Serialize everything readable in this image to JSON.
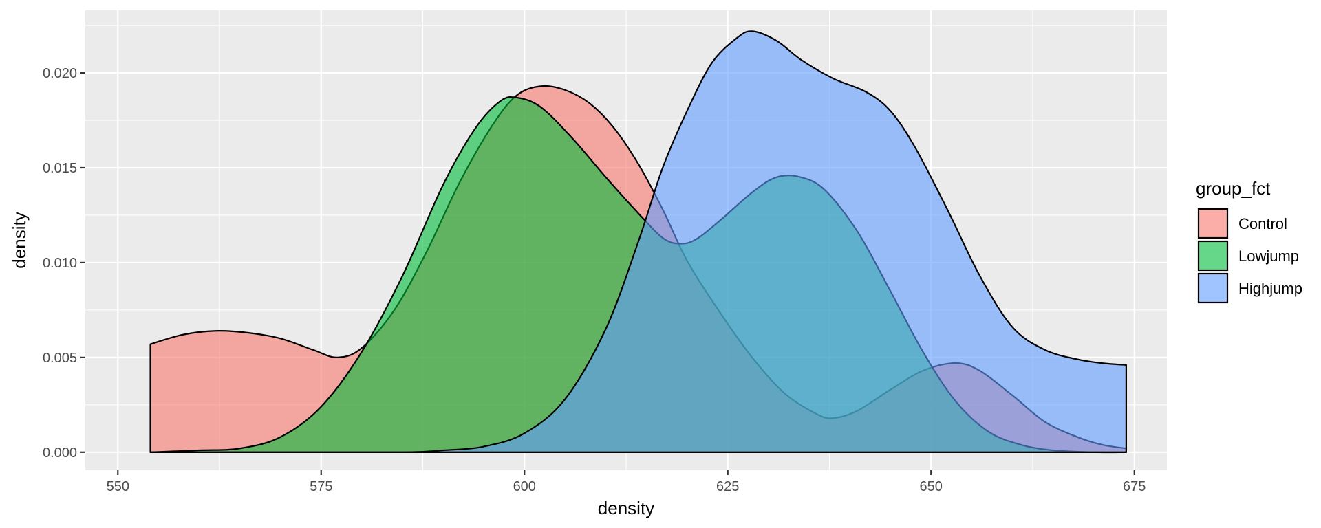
{
  "chart_data": {
    "type": "area",
    "subtype": "density",
    "xlabel": "density",
    "ylabel": "density",
    "xlim": [
      546,
      679
    ],
    "ylim": [
      -0.00095,
      0.0233
    ],
    "x_ticks": [
      550,
      575,
      600,
      625,
      650,
      675
    ],
    "y_ticks": [
      0.0,
      0.005,
      0.01,
      0.015,
      0.02
    ],
    "x_tick_labels": [
      "550",
      "575",
      "600",
      "625",
      "650",
      "675"
    ],
    "y_tick_labels": [
      "0.000",
      "0.005",
      "0.010",
      "0.015",
      "0.020"
    ],
    "grid": true,
    "legend": {
      "title": "group_fct",
      "position": "right",
      "entries": [
        "Control",
        "Lowjump",
        "Highjump"
      ]
    },
    "series": [
      {
        "name": "Control",
        "color": "#F8766D",
        "points": [
          [
            554,
            0.0057
          ],
          [
            558,
            0.0062
          ],
          [
            562,
            0.0064
          ],
          [
            566,
            0.0063
          ],
          [
            570,
            0.006
          ],
          [
            574,
            0.0054
          ],
          [
            577,
            0.005
          ],
          [
            580,
            0.0055
          ],
          [
            584,
            0.0075
          ],
          [
            588,
            0.0106
          ],
          [
            592,
            0.0142
          ],
          [
            596,
            0.0172
          ],
          [
            599,
            0.0188
          ],
          [
            602,
            0.0193
          ],
          [
            605,
            0.0191
          ],
          [
            608,
            0.0184
          ],
          [
            611,
            0.0171
          ],
          [
            614,
            0.0152
          ],
          [
            617,
            0.0128
          ],
          [
            620,
            0.0101
          ],
          [
            624,
            0.0074
          ],
          [
            628,
            0.005
          ],
          [
            632,
            0.0031
          ],
          [
            636,
            0.002
          ],
          [
            638,
            0.0018
          ],
          [
            641,
            0.0022
          ],
          [
            645,
            0.0033
          ],
          [
            649,
            0.0043
          ],
          [
            653,
            0.0047
          ],
          [
            656,
            0.0043
          ],
          [
            660,
            0.003
          ],
          [
            664,
            0.0016
          ],
          [
            668,
            0.0008
          ],
          [
            671,
            0.0004
          ],
          [
            674,
            0.0002
          ]
        ]
      },
      {
        "name": "Lowjump",
        "color": "#00BA38",
        "points": [
          [
            554,
            0.0
          ],
          [
            560,
            0.0001
          ],
          [
            565,
            0.0002
          ],
          [
            570,
            0.0008
          ],
          [
            575,
            0.0024
          ],
          [
            580,
            0.0053
          ],
          [
            585,
            0.0093
          ],
          [
            590,
            0.0141
          ],
          [
            594,
            0.0171
          ],
          [
            597,
            0.0185
          ],
          [
            599,
            0.0187
          ],
          [
            602,
            0.0182
          ],
          [
            606,
            0.0165
          ],
          [
            610,
            0.0145
          ],
          [
            614,
            0.0126
          ],
          [
            617,
            0.0113
          ],
          [
            619,
            0.011
          ],
          [
            621,
            0.0112
          ],
          [
            624,
            0.0122
          ],
          [
            628,
            0.0137
          ],
          [
            631,
            0.0145
          ],
          [
            634,
            0.0145
          ],
          [
            637,
            0.0138
          ],
          [
            641,
            0.0116
          ],
          [
            645,
            0.0085
          ],
          [
            649,
            0.0053
          ],
          [
            653,
            0.0027
          ],
          [
            657,
            0.0011
          ],
          [
            661,
            0.0004
          ],
          [
            665,
            0.0001
          ],
          [
            670,
            0.0
          ],
          [
            674,
            0.0
          ]
        ]
      },
      {
        "name": "Highjump",
        "color": "#619CFF",
        "points": [
          [
            554,
            0.0
          ],
          [
            570,
            0.0
          ],
          [
            585,
            0.0
          ],
          [
            590,
            0.0001
          ],
          [
            595,
            0.0003
          ],
          [
            600,
            0.001
          ],
          [
            605,
            0.0028
          ],
          [
            610,
            0.0065
          ],
          [
            614,
            0.0111
          ],
          [
            617,
            0.015
          ],
          [
            620,
            0.018
          ],
          [
            623,
            0.0205
          ],
          [
            626,
            0.0218
          ],
          [
            628,
            0.0222
          ],
          [
            631,
            0.0217
          ],
          [
            634,
            0.0207
          ],
          [
            638,
            0.0197
          ],
          [
            642,
            0.019
          ],
          [
            645,
            0.018
          ],
          [
            648,
            0.0161
          ],
          [
            652,
            0.0128
          ],
          [
            656,
            0.0093
          ],
          [
            660,
            0.0066
          ],
          [
            664,
            0.0054
          ],
          [
            668,
            0.0049
          ],
          [
            671,
            0.0047
          ],
          [
            674,
            0.0046
          ]
        ]
      }
    ]
  }
}
